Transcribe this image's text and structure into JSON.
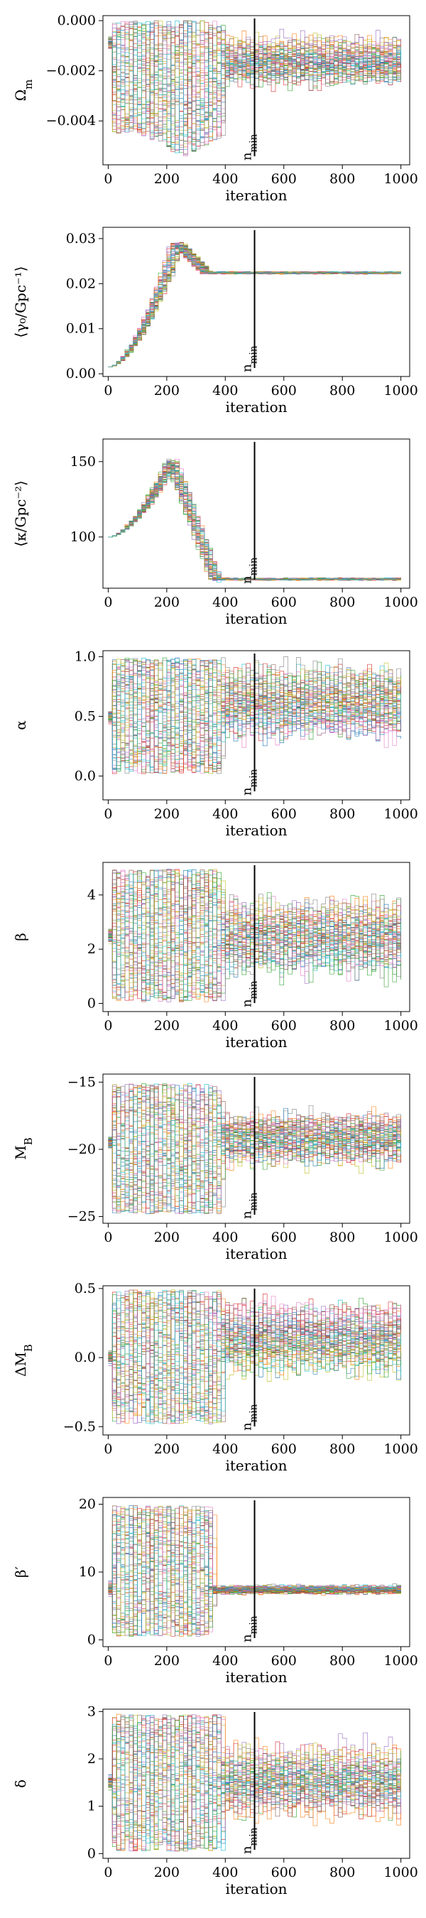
{
  "chart_data": [
    {
      "type": "line",
      "ylabel": "Ω_m",
      "xlabel": "iteration",
      "xlim": [
        -18,
        1030
      ],
      "ylim": [
        -0.00575,
        0.0002
      ],
      "xticks": [
        "0",
        "200",
        "400",
        "600",
        "800",
        "1000"
      ],
      "yticks": [
        {
          "v": 0.0,
          "label": "0.000"
        },
        {
          "v": -0.002,
          "label": "−0.002"
        },
        {
          "v": -0.004,
          "label": "−0.004"
        }
      ],
      "burnin": {
        "label": "n_min",
        "x": 500
      },
      "grid": false,
      "legend": "none",
      "traces": {
        "start": -0.0009,
        "early_lo": -0.0045,
        "early_hi": 0.0,
        "peak_lo": -0.0055,
        "peak_at": 250,
        "settle_at": 390,
        "late_center": -0.0016,
        "late_spread": 0.0012,
        "clip_max": 0.0
      }
    },
    {
      "type": "line",
      "ylabel": "⟨γ₀/Gpc⁻¹⟩",
      "xlabel": "iteration",
      "xlim": [
        -18,
        1030
      ],
      "ylim": [
        -0.0006,
        0.0325
      ],
      "xticks": [
        "0",
        "200",
        "400",
        "600",
        "800",
        "1000"
      ],
      "yticks": [
        {
          "v": 0.0,
          "label": "0.00"
        },
        {
          "v": 0.01,
          "label": "0.01"
        },
        {
          "v": 0.02,
          "label": "0.02"
        },
        {
          "v": 0.03,
          "label": "0.03"
        }
      ],
      "burnin": {
        "label": "n_min",
        "x": 500
      },
      "grid": false,
      "legend": "none",
      "traces": {
        "start": 0.0015,
        "rise_to": 0.029,
        "peak_at": 230,
        "settle_at": 330,
        "late_center": 0.0224,
        "late_spread": 0.0002
      }
    },
    {
      "type": "line",
      "ylabel": "⟨κ/Gpc⁻²⟩",
      "xlabel": "iteration",
      "xlim": [
        -18,
        1030
      ],
      "ylim": [
        66,
        165
      ],
      "xticks": [
        "0",
        "200",
        "400",
        "600",
        "800",
        "1000"
      ],
      "yticks": [
        {
          "v": 100,
          "label": "100"
        },
        {
          "v": 150,
          "label": "150"
        }
      ],
      "burnin": {
        "label": "n_min",
        "x": 500
      },
      "grid": false,
      "legend": "none",
      "traces": {
        "start": 100,
        "rise_to": 150,
        "peak_at": 210,
        "settle_at": 360,
        "late_center": 72,
        "late_spread": 0.6
      }
    },
    {
      "type": "line",
      "ylabel": "α",
      "xlabel": "iteration",
      "xlim": [
        -18,
        1030
      ],
      "ylim": [
        -0.2,
        1.05
      ],
      "xticks": [
        "0",
        "200",
        "400",
        "600",
        "800",
        "1000"
      ],
      "yticks": [
        {
          "v": 0.0,
          "label": "0.0"
        },
        {
          "v": 0.5,
          "label": "0.5"
        },
        {
          "v": 1.0,
          "label": "1.0"
        }
      ],
      "burnin": {
        "label": "n_min",
        "x": 500
      },
      "grid": false,
      "legend": "none",
      "traces": {
        "start": 0.5,
        "early_lo": 0.02,
        "early_hi": 0.99,
        "settle_at": 380,
        "late_center": 0.62,
        "late_spread": 0.38,
        "clip_min": 0.02,
        "clip_max": 1.0
      }
    },
    {
      "type": "line",
      "ylabel": "β",
      "xlabel": "iteration",
      "xlim": [
        -18,
        1030
      ],
      "ylim": [
        -0.3,
        5.2
      ],
      "xticks": [
        "0",
        "200",
        "400",
        "600",
        "800",
        "1000"
      ],
      "yticks": [
        {
          "v": 0,
          "label": "0"
        },
        {
          "v": 2,
          "label": "2"
        },
        {
          "v": 4,
          "label": "4"
        }
      ],
      "burnin": {
        "label": "n_min",
        "x": 500
      },
      "grid": false,
      "legend": "none",
      "traces": {
        "start": 2.5,
        "early_lo": 0.05,
        "early_hi": 4.95,
        "settle_at": 380,
        "late_center": 2.4,
        "late_spread": 1.8,
        "clip_min": 0.0,
        "clip_max": 5.0
      }
    },
    {
      "type": "line",
      "ylabel": "M_B",
      "xlabel": "iteration",
      "xlim": [
        -18,
        1030
      ],
      "ylim": [
        -25.5,
        -14.4
      ],
      "xticks": [
        "0",
        "200",
        "400",
        "600",
        "800",
        "1000"
      ],
      "yticks": [
        {
          "v": -15,
          "label": "−15"
        },
        {
          "v": -20,
          "label": "−20"
        },
        {
          "v": -25,
          "label": "−25"
        }
      ],
      "burnin": {
        "label": "n_min",
        "x": 500
      },
      "grid": false,
      "legend": "none",
      "traces": {
        "start": -19.5,
        "early_lo": -24.8,
        "early_hi": -15.1,
        "settle_at": 380,
        "late_center": -19.2,
        "late_spread": 2.4
      }
    },
    {
      "type": "line",
      "ylabel": "ΔM_B",
      "xlabel": "iteration",
      "xlim": [
        -18,
        1030
      ],
      "ylim": [
        -0.56,
        0.52
      ],
      "xticks": [
        "0",
        "200",
        "400",
        "600",
        "800",
        "1000"
      ],
      "yticks": [
        {
          "v": 0.5,
          "label": "0.5"
        },
        {
          "v": 0.0,
          "label": "0.0"
        },
        {
          "v": -0.5,
          "label": "−0.5"
        }
      ],
      "burnin": {
        "label": "n_min",
        "x": 500
      },
      "grid": false,
      "legend": "none",
      "traces": {
        "start": 0.0,
        "early_lo": -0.48,
        "early_hi": 0.49,
        "settle_at": 380,
        "late_center": 0.12,
        "late_spread": 0.3,
        "clip_min": -0.5,
        "clip_max": 0.5
      }
    },
    {
      "type": "line",
      "ylabel": "β′",
      "xlabel": "iteration",
      "xlim": [
        -18,
        1030
      ],
      "ylim": [
        -1,
        21
      ],
      "xticks": [
        "0",
        "200",
        "400",
        "600",
        "800",
        "1000"
      ],
      "yticks": [
        {
          "v": 0,
          "label": "0"
        },
        {
          "v": 10,
          "label": "10"
        },
        {
          "v": 20,
          "label": "20"
        }
      ],
      "burnin": {
        "label": "n_min",
        "x": 500
      },
      "grid": false,
      "legend": "none",
      "traces": {
        "start": 7.5,
        "early_lo": 0.5,
        "early_hi": 19.8,
        "settle_at": 350,
        "late_center": 7.4,
        "late_spread": 0.8,
        "clip_min": 0.0,
        "clip_max": 20.0
      }
    },
    {
      "type": "line",
      "ylabel": "δ",
      "xlabel": "iteration",
      "xlim": [
        -18,
        1030
      ],
      "ylim": [
        -0.1,
        3.05
      ],
      "xticks": [
        "0",
        "200",
        "400",
        "600",
        "800",
        "1000"
      ],
      "yticks": [
        {
          "v": 0,
          "label": "0"
        },
        {
          "v": 1,
          "label": "1"
        },
        {
          "v": 2,
          "label": "2"
        },
        {
          "v": 3,
          "label": "3"
        }
      ],
      "burnin": {
        "label": "n_min",
        "x": 500
      },
      "grid": false,
      "legend": "none",
      "traces": {
        "start": 1.5,
        "early_lo": 0.05,
        "early_hi": 2.95,
        "settle_at": 380,
        "late_center": 1.5,
        "late_spread": 0.9,
        "clip_min": 0.0,
        "clip_max": 3.0
      }
    }
  ],
  "colors": [
    "#1f77b4",
    "#ff7f0e",
    "#2ca02c",
    "#d62728",
    "#9467bd",
    "#8c564b",
    "#e377c2",
    "#7f7f7f",
    "#bcbd22",
    "#17becf"
  ]
}
